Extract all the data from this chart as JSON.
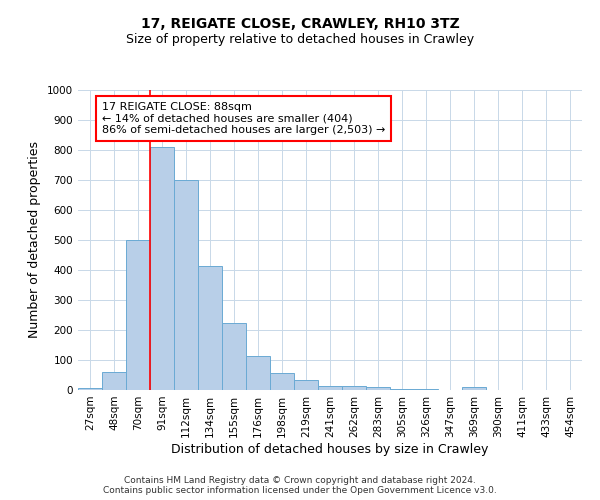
{
  "title1": "17, REIGATE CLOSE, CRAWLEY, RH10 3TZ",
  "title2": "Size of property relative to detached houses in Crawley",
  "xlabel": "Distribution of detached houses by size in Crawley",
  "ylabel": "Number of detached properties",
  "bar_labels": [
    "27sqm",
    "48sqm",
    "70sqm",
    "91sqm",
    "112sqm",
    "134sqm",
    "155sqm",
    "176sqm",
    "198sqm",
    "219sqm",
    "241sqm",
    "262sqm",
    "283sqm",
    "305sqm",
    "326sqm",
    "347sqm",
    "369sqm",
    "390sqm",
    "411sqm",
    "433sqm",
    "454sqm"
  ],
  "bar_values": [
    8,
    60,
    500,
    810,
    700,
    415,
    225,
    115,
    57,
    32,
    15,
    15,
    10,
    5,
    5,
    0,
    10,
    0,
    0,
    0,
    0
  ],
  "bar_color": "#b8cfe8",
  "bar_edge_color": "#6aaad4",
  "vline_x": 2.5,
  "vline_color": "red",
  "annotation_text": "17 REIGATE CLOSE: 88sqm\n← 14% of detached houses are smaller (404)\n86% of semi-detached houses are larger (2,503) →",
  "annotation_box_color": "white",
  "annotation_box_edge": "red",
  "ylim": [
    0,
    1000
  ],
  "yticks": [
    0,
    100,
    200,
    300,
    400,
    500,
    600,
    700,
    800,
    900,
    1000
  ],
  "footer1": "Contains HM Land Registry data © Crown copyright and database right 2024.",
  "footer2": "Contains public sector information licensed under the Open Government Licence v3.0.",
  "bg_color": "#ffffff",
  "grid_color": "#c8d8e8",
  "title1_fontsize": 10,
  "title2_fontsize": 9,
  "xlabel_fontsize": 9,
  "ylabel_fontsize": 9,
  "tick_fontsize": 7.5,
  "footer_fontsize": 6.5,
  "annot_fontsize": 8
}
